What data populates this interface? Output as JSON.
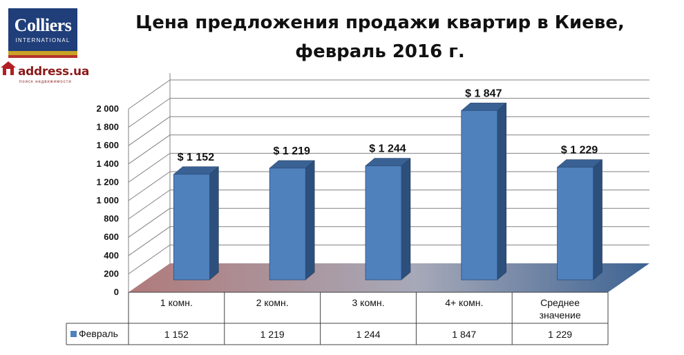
{
  "logos": {
    "colliers": {
      "name": "Colliers",
      "sub": "INTERNATIONAL"
    },
    "address": {
      "brand": "address.ua",
      "tagline": "поиск недвижимости"
    }
  },
  "chart_data": {
    "type": "bar",
    "title_line1": "Цена предложения продажи квартир в Киеве,",
    "title_line2": "февраль 2016 г.",
    "categories": [
      [
        "1 комн."
      ],
      [
        "2 комн."
      ],
      [
        "3 комн."
      ],
      [
        "4+ комн."
      ],
      [
        "Среднее",
        "значение"
      ]
    ],
    "series": [
      {
        "name": "Февраль",
        "values": [
          1152,
          1219,
          1244,
          1847,
          1229
        ],
        "data_labels": [
          "$ 1 152",
          "$  1 219",
          "$  1 244",
          "$ 1 847",
          "$ 1 229"
        ],
        "table_values": [
          "1 152",
          "1 219",
          "1 244",
          "1 847",
          "1 229"
        ],
        "color": "#4f81bd"
      }
    ],
    "y_ticks": [
      "0",
      "200",
      "400",
      "600",
      "800",
      "1 000",
      "1 200",
      "1 400",
      "1 600",
      "1 800",
      "2 000"
    ],
    "ylim": [
      0,
      2000
    ],
    "grid": true,
    "style": "3d-column",
    "data_table": true,
    "colors": {
      "bar_front": "#4f81bd",
      "bar_side": "#2d4f7c",
      "bar_top": "#3a6194",
      "floor_left": "#b07a7a",
      "floor_right": "#3d6392"
    }
  }
}
